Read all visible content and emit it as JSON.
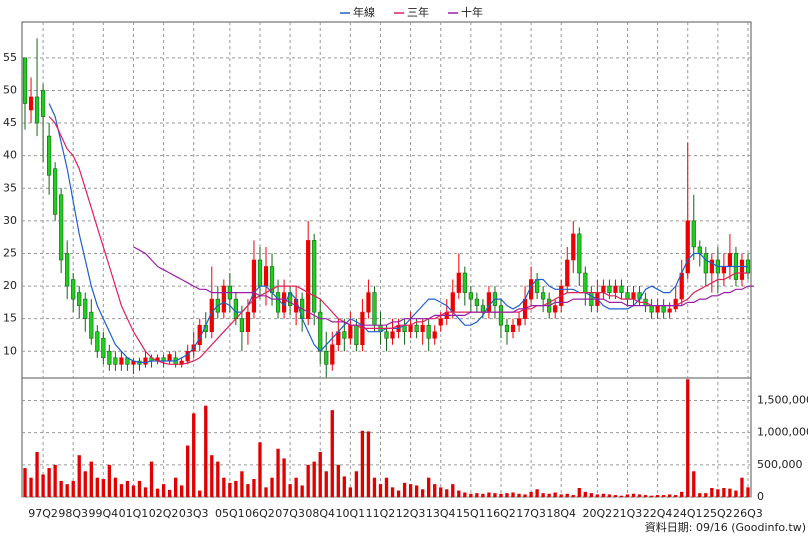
{
  "chart_data": [
    {
      "type": "candlestick",
      "up_color": "#ee0000",
      "down_color": "#22cc22",
      "grid": true,
      "ylim": [
        5.9,
        60.5
      ],
      "yticks": [
        10,
        15,
        20,
        25,
        30,
        35,
        40,
        45,
        50,
        55
      ],
      "candles": {
        "open": [
          55,
          47,
          49,
          50,
          43,
          38,
          34,
          25,
          21,
          19,
          18,
          16,
          13,
          12,
          10,
          9,
          8,
          9,
          8,
          8.5,
          8,
          9,
          8.5,
          9,
          8.5,
          9,
          8,
          8.5,
          10,
          11,
          14,
          13,
          18,
          16,
          20,
          18,
          15,
          13,
          16,
          24,
          20,
          23,
          19,
          16,
          19,
          16,
          18,
          15,
          27,
          16,
          10,
          8,
          11,
          13,
          12,
          14,
          11,
          16,
          19,
          14,
          13,
          12,
          13,
          14,
          13,
          14,
          13,
          14,
          12,
          14,
          15,
          16,
          19,
          22,
          19,
          18,
          17,
          16,
          19,
          17,
          14,
          13,
          14,
          15,
          18,
          21,
          19,
          18,
          16,
          17,
          20,
          24,
          28,
          22,
          19,
          17,
          19,
          20,
          19,
          20,
          19,
          18,
          19,
          18,
          17,
          16,
          17,
          16,
          16.5,
          18,
          22,
          30,
          26,
          25,
          22,
          24,
          22,
          23,
          25,
          21,
          24
        ],
        "high": [
          55,
          52,
          58,
          51,
          45,
          39,
          35,
          27,
          22,
          20,
          19,
          18,
          14,
          13,
          11,
          10,
          10,
          9,
          9,
          9,
          10,
          9.5,
          9.5,
          9.5,
          10,
          10,
          9,
          11,
          13,
          15,
          16,
          23,
          20,
          21,
          22,
          19,
          17,
          18,
          27,
          26,
          26,
          25,
          21,
          21,
          20,
          20,
          19,
          30,
          28,
          18,
          13,
          13,
          15,
          15,
          16,
          15,
          18,
          21,
          20,
          16,
          14,
          15,
          15,
          15,
          16,
          15,
          15,
          15,
          14,
          16,
          18,
          21,
          25,
          23,
          20,
          19,
          18,
          20,
          20,
          18,
          15,
          15,
          16,
          20,
          23,
          22,
          20,
          19,
          18,
          21,
          26,
          30,
          29,
          23,
          20,
          21,
          21,
          21,
          21,
          21,
          20,
          20,
          20,
          19,
          18,
          18,
          18,
          17.5,
          20,
          24,
          42,
          34,
          27,
          26,
          25,
          26,
          25,
          28,
          26,
          25,
          25
        ],
        "low": [
          44,
          45,
          43,
          39,
          34,
          30,
          22,
          18,
          16,
          15,
          13,
          11,
          9,
          8,
          7,
          7,
          7,
          7,
          6.5,
          7,
          7.5,
          7.5,
          8,
          7.5,
          8,
          7.5,
          7.5,
          8,
          9,
          10,
          12,
          12,
          15,
          15,
          16,
          14,
          10,
          11,
          15,
          18,
          17,
          17,
          15,
          15,
          15.5,
          14,
          13,
          14,
          14,
          8,
          6,
          7,
          10,
          10,
          11,
          10,
          10,
          15,
          13,
          11,
          10,
          11,
          12,
          11,
          12,
          12,
          11,
          10,
          11,
          13,
          14,
          15,
          18,
          17,
          16,
          16,
          15,
          15,
          15,
          12,
          11,
          12,
          13,
          14,
          17,
          18,
          16,
          15,
          15,
          16,
          19,
          22,
          20,
          17,
          16,
          16,
          18,
          18,
          18,
          18,
          17,
          17,
          17,
          16,
          15,
          15,
          15,
          15,
          16,
          17,
          21,
          24,
          23,
          20,
          19,
          19,
          20,
          21,
          20,
          20,
          21
        ],
        "close": [
          48,
          49,
          45,
          46,
          37,
          31,
          24,
          20,
          18,
          17,
          15,
          12,
          10,
          9,
          8,
          8,
          9,
          8,
          8.5,
          8,
          9,
          8.5,
          9,
          8.5,
          9.5,
          8,
          8.5,
          10,
          11,
          14,
          13,
          18,
          16,
          20,
          18,
          15,
          13,
          16,
          24,
          20,
          23,
          19,
          16,
          19,
          17,
          18,
          15,
          27,
          16,
          10,
          8,
          11,
          13,
          12,
          14,
          11,
          16,
          19,
          14,
          13,
          12,
          13,
          14,
          13,
          14,
          13,
          14,
          12,
          13,
          15,
          16,
          19,
          22,
          19,
          18,
          17,
          16,
          19,
          17,
          14,
          13,
          14,
          15,
          18,
          21,
          19,
          18,
          16,
          17,
          20,
          24,
          28,
          22,
          19,
          17,
          19,
          20,
          19,
          20,
          19,
          18,
          19,
          18,
          17,
          16,
          17,
          16,
          16.5,
          18,
          22,
          30,
          26,
          25,
          22,
          24,
          22,
          23,
          25,
          21,
          24,
          22
        ]
      },
      "series": [
        {
          "name": "年線",
          "color": "#1f5fcf",
          "values": [
            null,
            null,
            null,
            null,
            48,
            46,
            42,
            38,
            33,
            28,
            24,
            20,
            17,
            15,
            13,
            11,
            10,
            9,
            8.5,
            8.3,
            8.3,
            8.5,
            8.5,
            8.5,
            8.5,
            8.5,
            9,
            9.5,
            10.5,
            12,
            14,
            16,
            17,
            17.5,
            17,
            16,
            16,
            17,
            19,
            20,
            20,
            19,
            18,
            17,
            19,
            18,
            15,
            13,
            11,
            10,
            11,
            12,
            13,
            14,
            15,
            14.5,
            14,
            13,
            13,
            13,
            13.5,
            13.5,
            13.5,
            14,
            15,
            16,
            17,
            18,
            18,
            17.5,
            17,
            16,
            15,
            14,
            14,
            14.5,
            15.5,
            17,
            18,
            18,
            17,
            16.5,
            17,
            18,
            20,
            21,
            21,
            20,
            19.5,
            19.5,
            19.5,
            19.5,
            19,
            19,
            18.5,
            18,
            17,
            16.5,
            16.5,
            16.5,
            16.5,
            17,
            18,
            19.5,
            20,
            19.5,
            19,
            19,
            20,
            22,
            24,
            25,
            25,
            24,
            23.5,
            23,
            23,
            23,
            23,
            23,
            23
          ]
        },
        {
          "name": "三年",
          "color": "#e0205a",
          "values": [
            null,
            null,
            null,
            null,
            46,
            45,
            43,
            41,
            40,
            38,
            35,
            32,
            29,
            26,
            23,
            20,
            17,
            15,
            13,
            11.5,
            10,
            9,
            8.5,
            8.2,
            8,
            8,
            8,
            8.2,
            8.5,
            9,
            10,
            11,
            12,
            13,
            14,
            15,
            16,
            17,
            18,
            18.5,
            19,
            19.5,
            20,
            20,
            20,
            20,
            19.5,
            19,
            18.5,
            18,
            17,
            16,
            15,
            14.5,
            14,
            14,
            13.5,
            13.5,
            13.5,
            13.5,
            13.5,
            13.5,
            14,
            14,
            14,
            14.5,
            14.5,
            15,
            15,
            15.5,
            16,
            16,
            16,
            16,
            16,
            16,
            16,
            16,
            16,
            16,
            16,
            16,
            16,
            16.5,
            16.5,
            17,
            17,
            17.5,
            18,
            18.5,
            19,
            19,
            19,
            19,
            19,
            19,
            19,
            18.5,
            18.5,
            18,
            18,
            18,
            17.5,
            17.5,
            17,
            17,
            17,
            17,
            17,
            17.5,
            18,
            19,
            19.5,
            20,
            20.5,
            21,
            21,
            21.5,
            22,
            22,
            22
          ]
        },
        {
          "name": "十年",
          "color": "#9a1fa8",
          "values": [
            null,
            null,
            null,
            null,
            null,
            null,
            null,
            null,
            null,
            null,
            null,
            null,
            null,
            null,
            null,
            null,
            null,
            null,
            26,
            25.5,
            25,
            24,
            23,
            22.5,
            22,
            21.5,
            21,
            20.5,
            20,
            19.5,
            19.5,
            19,
            19,
            19,
            19,
            19,
            19,
            19,
            19,
            18.5,
            18.5,
            18,
            18,
            18,
            17.5,
            17,
            16.5,
            16,
            15.5,
            15,
            15,
            14.5,
            14.5,
            14.5,
            14,
            14,
            14,
            14,
            14,
            14,
            14,
            14.5,
            14.5,
            15,
            15,
            15,
            15,
            15,
            15.5,
            15.5,
            15.5,
            15.5,
            15.5,
            15.5,
            16,
            16,
            16,
            16,
            16,
            16,
            16,
            16,
            16.5,
            16.5,
            17,
            17,
            17,
            17,
            17.5,
            17.5,
            17.5,
            18,
            18,
            18,
            18,
            18,
            18,
            17.5,
            17.5,
            17.5,
            17,
            17,
            17,
            17,
            17,
            17,
            17,
            17,
            17,
            17,
            17.5,
            17.5,
            18,
            18,
            18.5,
            18.5,
            19,
            19,
            19.5,
            19.5,
            20,
            20
          ]
        }
      ]
    },
    {
      "type": "bar",
      "color": "#e00000",
      "grid": true,
      "categories": [
        null,
        null,
        null,
        "97Q2",
        null,
        null,
        null,
        null,
        "98Q3",
        null,
        null,
        null,
        null,
        "99Q4",
        null,
        null,
        null,
        null,
        "01Q1",
        null,
        null,
        null,
        null,
        "02Q2",
        null,
        null,
        null,
        null,
        "03Q3",
        null,
        null,
        null,
        null,
        null,
        "05Q1",
        null,
        null,
        null,
        null,
        "06Q2",
        null,
        null,
        null,
        null,
        "07Q3",
        null,
        null,
        null,
        null,
        "08Q4",
        null,
        null,
        null,
        null,
        "10Q1",
        null,
        null,
        null,
        null,
        "11Q2",
        null,
        null,
        null,
        null,
        "12Q3",
        null,
        null,
        null,
        null,
        "13Q4",
        null,
        null,
        null,
        null,
        "15Q1",
        null,
        null,
        null,
        null,
        "16Q2",
        null,
        null,
        null,
        null,
        "17Q3",
        null,
        null,
        null,
        null,
        "18Q4",
        null,
        null,
        null,
        null,
        null,
        "20Q2",
        null,
        null,
        null,
        null,
        "21Q3",
        null,
        null,
        null,
        null,
        "22Q4",
        null,
        null,
        null,
        null,
        "24Q1",
        null,
        null,
        null,
        null,
        "25Q2",
        null,
        null,
        null,
        null,
        "26Q3"
      ],
      "values": [
        450000,
        300000,
        700000,
        350000,
        450000,
        500000,
        250000,
        200000,
        250000,
        650000,
        400000,
        550000,
        300000,
        280000,
        500000,
        300000,
        200000,
        250000,
        180000,
        250000,
        150000,
        550000,
        130000,
        200000,
        110000,
        300000,
        180000,
        800000,
        1300000,
        100000,
        1420000,
        650000,
        550000,
        300000,
        220000,
        250000,
        400000,
        200000,
        280000,
        850000,
        150000,
        300000,
        750000,
        600000,
        200000,
        300000,
        180000,
        500000,
        550000,
        700000,
        400000,
        1350000,
        500000,
        320000,
        150000,
        400000,
        1030000,
        1020000,
        300000,
        200000,
        300000,
        150000,
        100000,
        220000,
        200000,
        180000,
        120000,
        300000,
        200000,
        150000,
        120000,
        200000,
        100000,
        70000,
        50000,
        60000,
        50000,
        70000,
        60000,
        50000,
        60000,
        70000,
        50000,
        40000,
        80000,
        120000,
        60000,
        50000,
        70000,
        40000,
        50000,
        30000,
        140000,
        80000,
        60000,
        40000,
        50000,
        40000,
        30000,
        20000,
        40000,
        50000,
        40000,
        30000,
        20000,
        30000,
        30000,
        40000,
        30000,
        80000,
        1830000,
        400000,
        60000,
        60000,
        140000,
        120000,
        140000,
        130000,
        100000,
        300000,
        150000
      ],
      "ylim": [
        0,
        1850000
      ],
      "yticks": [
        0,
        {
          "value": 500000,
          "label": "500,000"
        },
        {
          "value": 1000000,
          "label": "1,000,000"
        },
        {
          "value": 1500000,
          "label": "1,500,000"
        }
      ]
    }
  ],
  "footnote": "資料日期: 09/16 (Goodinfo.tw)"
}
